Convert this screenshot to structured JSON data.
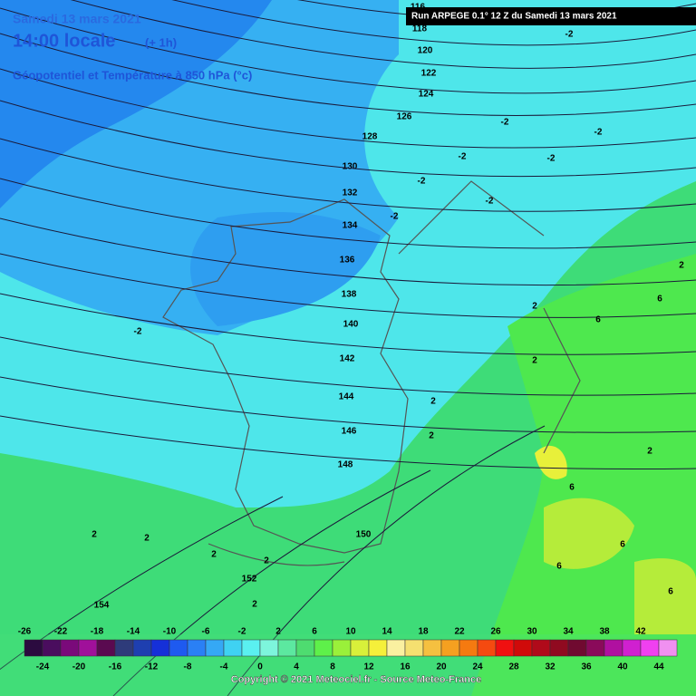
{
  "header": {
    "date": "Samedi 13 mars 2021",
    "time": "14:00 locale",
    "offset": "(+ 1h)",
    "title": "Géopotentiel et Température à 850 hPa (°c)",
    "run": "Run ARPEGE 0.1° 12 Z du Samedi 13 mars 2021"
  },
  "contours": [
    116,
    118,
    120,
    122,
    124,
    126,
    128,
    130,
    132,
    134,
    136,
    138,
    140,
    142,
    144,
    146,
    148,
    150,
    152,
    154
  ],
  "temp_labels": [
    -2,
    -2,
    -2,
    -2,
    -2,
    -2,
    -2,
    -2,
    -2,
    2,
    2,
    2,
    2,
    2,
    2,
    2,
    2,
    2,
    2,
    2,
    6,
    6,
    6,
    6,
    6,
    6
  ],
  "scale": {
    "top_labels": [
      -26,
      -22,
      -18,
      -14,
      -10,
      -6,
      -2,
      2,
      6,
      10,
      14,
      18,
      22,
      26,
      30,
      34,
      38,
      42
    ],
    "bottom_labels": [
      -24,
      -20,
      -16,
      -12,
      -8,
      -4,
      0,
      4,
      8,
      12,
      16,
      20,
      24,
      28,
      32,
      36,
      40,
      44
    ],
    "colors": [
      "#2b0b3f",
      "#4a0d5e",
      "#7a0a7a",
      "#a0109a",
      "#5a0a50",
      "#2e3b7a",
      "#1e3fb0",
      "#1530d8",
      "#1e5af0",
      "#2a80f5",
      "#35a8f5",
      "#3fd2f2",
      "#5af0f0",
      "#7df5dc",
      "#5ce8a0",
      "#4edc70",
      "#5ef04a",
      "#9af03a",
      "#d8f03a",
      "#f5f03a",
      "#faf0a0",
      "#f5e070",
      "#f5c040",
      "#f5a020",
      "#f57a10",
      "#f54a10",
      "#f01010",
      "#d00a0a",
      "#b00a1a",
      "#900a20",
      "#700a30",
      "#8a0a5a",
      "#b010a0",
      "#d020d0",
      "#f040f0",
      "#f090f0"
    ]
  },
  "copyright": "Copyright © 2021 Meteociel.fr - Source Meteo-France"
}
